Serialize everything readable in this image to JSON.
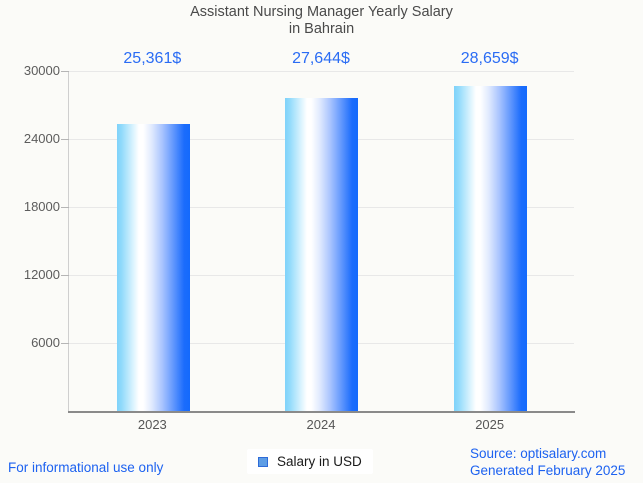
{
  "page": {
    "background": "#fbfbf8"
  },
  "title": {
    "line1": "Assistant Nursing Manager Yearly Salary",
    "line2": "in Bahrain"
  },
  "chart_data": {
    "type": "bar",
    "title": "Assistant Nursing Manager Yearly Salary in Bahrain",
    "categories": [
      "2023",
      "2024",
      "2025"
    ],
    "values": [
      25361,
      27644,
      28659
    ],
    "value_labels": [
      "25,361$",
      "27,644$",
      "28,659$"
    ],
    "xlabel": "",
    "ylabel": "",
    "ylim": [
      0,
      30000
    ],
    "yticks": [
      6000,
      12000,
      18000,
      24000,
      30000
    ],
    "grid": true,
    "legend_position": "bottom",
    "series": [
      {
        "name": "Salary in USD",
        "values": [
          25361,
          27644,
          28659
        ]
      }
    ],
    "colors": {
      "bar_gradient_left": "#7fd2fa",
      "bar_gradient_mid": "#ffffff",
      "bar_gradient_right": "#146afc",
      "value_label": "#2a6cf4",
      "axis_text": "#5c5c5c",
      "gridline": "#e8e8e8"
    }
  },
  "legend": {
    "label": "Salary in USD",
    "marker_fill": "#5d9de5",
    "marker_border": "#2e6bd8"
  },
  "footer": {
    "left_note": "For informational use only",
    "source_line": "Source: optisalary.com",
    "generated_line": "Generated February 2025",
    "link_color": "#1d62f0"
  }
}
